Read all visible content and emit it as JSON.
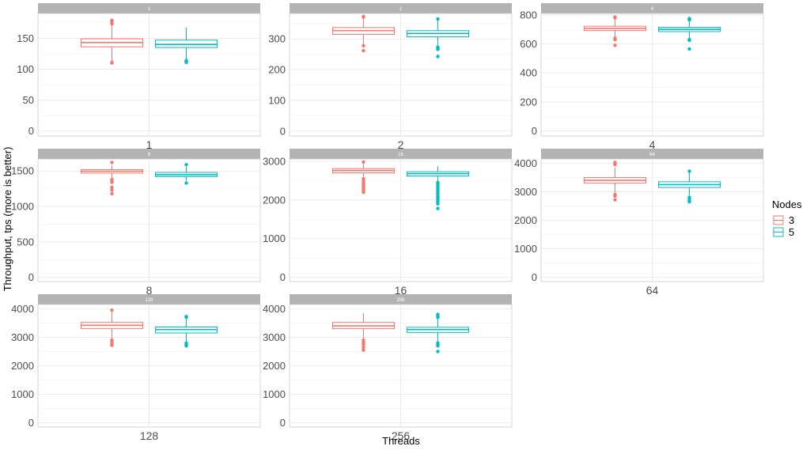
{
  "chart_data": {
    "type": "boxplot",
    "title": "",
    "xlabel": "Threads",
    "ylabel": "Throughput, tps (more is better)",
    "legend": {
      "title": "Nodes",
      "placement": "right",
      "entries": [
        {
          "label": "3",
          "color": "#F8766D"
        },
        {
          "label": "5",
          "color": "#00BFC4"
        }
      ]
    },
    "grid": true,
    "facets": [
      {
        "strip": "1",
        "category": "1",
        "ylim": [
          -8,
          190
        ],
        "yticks": [
          0,
          50,
          100,
          150
        ],
        "boxes": [
          {
            "nodes": "3",
            "whisker_low": 112,
            "q1": 136,
            "median": 143,
            "q3": 149,
            "whisker_high": 170,
            "outliers": [
              110,
              111,
              173,
              175,
              177,
              178,
              179
            ]
          },
          {
            "nodes": "5",
            "whisker_low": 116,
            "q1": 135,
            "median": 140,
            "q3": 147,
            "whisker_high": 167,
            "outliers": [
              111,
              112,
              113,
              114
            ]
          }
        ]
      },
      {
        "strip": "2",
        "category": "2",
        "ylim": [
          -16,
          383
        ],
        "yticks": [
          0,
          100,
          200,
          300
        ],
        "boxes": [
          {
            "nodes": "3",
            "whisker_low": 282,
            "q1": 315,
            "median": 327,
            "q3": 337,
            "whisker_high": 365,
            "outliers": [
              262,
              278,
              371,
              373
            ]
          },
          {
            "nodes": "5",
            "whisker_low": 275,
            "q1": 307,
            "median": 318,
            "q3": 327,
            "whisker_high": 362,
            "outliers": [
              243,
              266,
              269,
              271,
              273,
              365
            ]
          }
        ]
      },
      {
        "strip": "4",
        "category": "4",
        "ylim": [
          -35,
          810
        ],
        "yticks": [
          0,
          200,
          400,
          600,
          800
        ],
        "boxes": [
          {
            "nodes": "3",
            "whisker_low": 650,
            "q1": 692,
            "median": 707,
            "q3": 722,
            "whisker_high": 770,
            "outliers": [
              590,
              630,
              640,
              780,
              785
            ]
          },
          {
            "nodes": "5",
            "whisker_low": 640,
            "q1": 685,
            "median": 700,
            "q3": 715,
            "whisker_high": 760,
            "outliers": [
              565,
              625,
              630,
              765,
              770,
              775
            ]
          }
        ]
      },
      {
        "strip": "8",
        "category": "8",
        "ylim": [
          -60,
          1670
        ],
        "yticks": [
          0,
          500,
          1000,
          1500
        ],
        "boxes": [
          {
            "nodes": "3",
            "whisker_low": 1400,
            "q1": 1470,
            "median": 1497,
            "q3": 1520,
            "whisker_high": 1580,
            "outliers": [
              1180,
              1230,
              1270,
              1340,
              1360,
              1380,
              1620
            ]
          },
          {
            "nodes": "5",
            "whisker_low": 1360,
            "q1": 1420,
            "median": 1447,
            "q3": 1480,
            "whisker_high": 1560,
            "outliers": [
              1330,
              1590
            ]
          }
        ]
      },
      {
        "strip": "16",
        "category": "16",
        "ylim": [
          -110,
          3060
        ],
        "yticks": [
          0,
          1000,
          2000,
          3000
        ],
        "boxes": [
          {
            "nodes": "3",
            "whisker_low": 2600,
            "q1": 2700,
            "median": 2760,
            "q3": 2810,
            "whisker_high": 2930,
            "outliers": [
              2200,
              2250,
              2300,
              2350,
              2400,
              2450,
              2500,
              2550,
              2980
            ]
          },
          {
            "nodes": "5",
            "whisker_low": 2480,
            "q1": 2620,
            "median": 2680,
            "q3": 2730,
            "whisker_high": 2870,
            "outliers": [
              1780,
              1900,
              1950,
              2000,
              2050,
              2100,
              2150,
              2200,
              2250,
              2300,
              2350,
              2400,
              2450
            ]
          }
        ]
      },
      {
        "strip": "64",
        "category": "64",
        "ylim": [
          -150,
          4150
        ],
        "yticks": [
          0,
          1000,
          2000,
          3000,
          4000
        ],
        "boxes": [
          {
            "nodes": "3",
            "whisker_low": 2950,
            "q1": 3300,
            "median": 3400,
            "q3": 3500,
            "whisker_high": 3850,
            "outliers": [
              2720,
              2850,
              2900,
              3950,
              4000,
              4030
            ]
          },
          {
            "nodes": "5",
            "whisker_low": 2800,
            "q1": 3150,
            "median": 3250,
            "q3": 3350,
            "whisker_high": 3700,
            "outliers": [
              2650,
              2700,
              2750,
              2800,
              3720
            ]
          }
        ]
      },
      {
        "strip": "128",
        "category": "128",
        "ylim": [
          -150,
          4150
        ],
        "yticks": [
          0,
          1000,
          2000,
          3000,
          4000
        ],
        "boxes": [
          {
            "nodes": "3",
            "whisker_low": 2950,
            "q1": 3300,
            "median": 3420,
            "q3": 3520,
            "whisker_high": 3900,
            "outliers": [
              2720,
              2780,
              2850,
              2900,
              3950
            ]
          },
          {
            "nodes": "5",
            "whisker_low": 2850,
            "q1": 3150,
            "median": 3270,
            "q3": 3360,
            "whisker_high": 3650,
            "outliers": [
              2700,
              2750,
              2800,
              3700,
              3730
            ]
          }
        ]
      },
      {
        "strip": "256",
        "category": "256",
        "ylim": [
          -150,
          4150
        ],
        "yticks": [
          0,
          1000,
          2000,
          3000,
          4000
        ],
        "boxes": [
          {
            "nodes": "3",
            "whisker_low": 2950,
            "q1": 3300,
            "median": 3400,
            "q3": 3520,
            "whisker_high": 3850,
            "outliers": [
              2550,
              2650,
              2750,
              2800,
              2850,
              2900
            ]
          },
          {
            "nodes": "5",
            "whisker_low": 2850,
            "q1": 3170,
            "median": 3270,
            "q3": 3350,
            "whisker_high": 3650,
            "outliers": [
              2500,
              2700,
              2750,
              2800,
              3700,
              3750,
              3800
            ]
          }
        ]
      }
    ]
  }
}
